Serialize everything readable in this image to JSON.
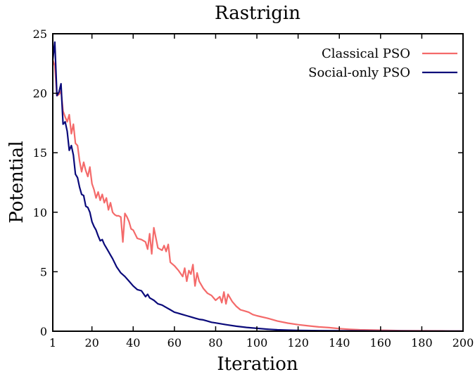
{
  "chart_data": {
    "type": "line",
    "title": "Rastrigin",
    "xlabel": "Iteration",
    "ylabel": "Potential",
    "xlim": [
      1,
      200
    ],
    "ylim": [
      0,
      25
    ],
    "xticks": [
      1,
      20,
      40,
      60,
      80,
      100,
      120,
      140,
      160,
      180,
      200
    ],
    "yticks": [
      0,
      5,
      10,
      15,
      20,
      25
    ],
    "legend": "top-right",
    "grid": false,
    "series": [
      {
        "name": "Classical PSO",
        "color": "#f46a6a",
        "x": [
          1,
          2,
          3,
          4,
          5,
          6,
          7,
          8,
          9,
          10,
          11,
          12,
          13,
          14,
          15,
          16,
          17,
          18,
          19,
          20,
          21,
          22,
          23,
          24,
          25,
          26,
          27,
          28,
          29,
          30,
          31,
          32,
          33,
          34,
          35,
          36,
          37,
          38,
          39,
          40,
          42,
          44,
          46,
          47,
          48,
          49,
          50,
          52,
          54,
          55,
          56,
          57,
          58,
          60,
          62,
          64,
          65,
          66,
          67,
          68,
          69,
          70,
          71,
          72,
          74,
          76,
          78,
          80,
          82,
          83,
          84,
          85,
          86,
          88,
          90,
          92,
          94,
          96,
          98,
          100,
          105,
          110,
          115,
          120,
          125,
          130,
          135,
          140,
          145,
          150,
          160,
          170,
          180,
          190,
          200
        ],
        "y": [
          22.8,
          22.3,
          19.8,
          19.9,
          20.2,
          18.5,
          18.0,
          17.6,
          18.2,
          16.6,
          17.4,
          15.8,
          15.6,
          14.3,
          13.4,
          14.2,
          13.5,
          13.0,
          13.8,
          12.4,
          11.9,
          11.2,
          11.7,
          11.0,
          11.5,
          10.8,
          11.2,
          10.2,
          10.8,
          10.0,
          9.8,
          9.7,
          9.7,
          9.6,
          7.5,
          9.9,
          9.6,
          9.2,
          8.6,
          8.5,
          7.8,
          7.7,
          7.5,
          6.9,
          8.2,
          6.5,
          8.7,
          7.0,
          6.8,
          7.2,
          6.7,
          7.3,
          5.8,
          5.5,
          5.1,
          4.6,
          5.3,
          4.2,
          5.1,
          4.8,
          5.6,
          3.8,
          4.9,
          4.2,
          3.6,
          3.2,
          3.0,
          2.6,
          2.9,
          2.4,
          3.3,
          2.3,
          3.1,
          2.5,
          2.1,
          1.8,
          1.7,
          1.6,
          1.4,
          1.3,
          1.1,
          0.85,
          0.68,
          0.55,
          0.45,
          0.36,
          0.3,
          0.22,
          0.16,
          0.12,
          0.08,
          0.05,
          0.04,
          0.03,
          0.02
        ]
      },
      {
        "name": "Social-only PSO",
        "color": "#0a0a7a",
        "x": [
          1,
          2,
          3,
          4,
          5,
          6,
          7,
          8,
          9,
          10,
          11,
          12,
          13,
          14,
          15,
          16,
          17,
          18,
          19,
          20,
          21,
          22,
          23,
          24,
          25,
          26,
          27,
          28,
          29,
          30,
          32,
          34,
          36,
          38,
          40,
          42,
          44,
          46,
          47,
          48,
          50,
          52,
          54,
          56,
          58,
          60,
          62,
          64,
          66,
          68,
          70,
          72,
          74,
          76,
          78,
          80,
          85,
          90,
          95,
          100,
          105,
          110,
          115,
          120,
          130,
          140,
          150,
          160,
          170,
          180,
          190,
          200
        ],
        "y": [
          22.8,
          24.3,
          19.8,
          20.1,
          20.8,
          17.4,
          17.6,
          16.8,
          15.2,
          15.6,
          14.8,
          13.2,
          12.9,
          12.1,
          11.5,
          11.4,
          10.5,
          10.4,
          10.0,
          9.2,
          8.8,
          8.5,
          8.0,
          7.6,
          7.7,
          7.3,
          7.0,
          6.7,
          6.4,
          6.1,
          5.4,
          4.9,
          4.6,
          4.2,
          3.8,
          3.5,
          3.4,
          2.9,
          3.1,
          2.8,
          2.6,
          2.3,
          2.2,
          2.0,
          1.8,
          1.6,
          1.5,
          1.4,
          1.3,
          1.2,
          1.1,
          1.0,
          0.95,
          0.85,
          0.75,
          0.7,
          0.55,
          0.42,
          0.32,
          0.24,
          0.17,
          0.12,
          0.09,
          0.07,
          0.05,
          0.04,
          0.03,
          0.02,
          0.015,
          0.01,
          0.01,
          0.01
        ]
      }
    ]
  }
}
